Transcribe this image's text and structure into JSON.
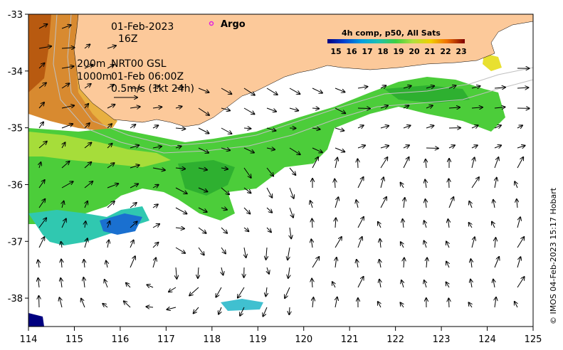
{
  "map": {
    "lon_range": [
      114,
      125
    ],
    "lat_range": [
      -38.5,
      -33
    ],
    "lon_ticks": [
      "114",
      "115",
      "116",
      "117",
      "118",
      "119",
      "120",
      "121",
      "122",
      "123",
      "124",
      "125"
    ],
    "lat_ticks": [
      "-33",
      "-34",
      "-35",
      "-36",
      "-37",
      "-38"
    ],
    "land_color": "#fcc99a",
    "coast_note": "South-west Australia"
  },
  "annotations": {
    "date": "01-Feb-2023",
    "time": "16Z",
    "contour_200": "200m",
    "contour_1000": "1000m",
    "product": "NRT00 GSL",
    "product_time": "01-Feb 06:00Z",
    "vector_scale": "0.5m/s (1kt 24h)"
  },
  "argo": {
    "label": "Argo",
    "marker_color": "#e020e0"
  },
  "legend": {
    "title": "4h comp, p50, All Sats",
    "ticks": [
      "15",
      "16",
      "17",
      "18",
      "19",
      "20",
      "21",
      "22",
      "23"
    ],
    "colors": [
      "#000080",
      "#0030c0",
      "#0080e0",
      "#20c0c0",
      "#40d040",
      "#a0e040",
      "#f0e000",
      "#f08000",
      "#c02000",
      "#800000"
    ]
  },
  "credit": "© IMOS 04-Feb-2023 15:17 Hobart"
}
